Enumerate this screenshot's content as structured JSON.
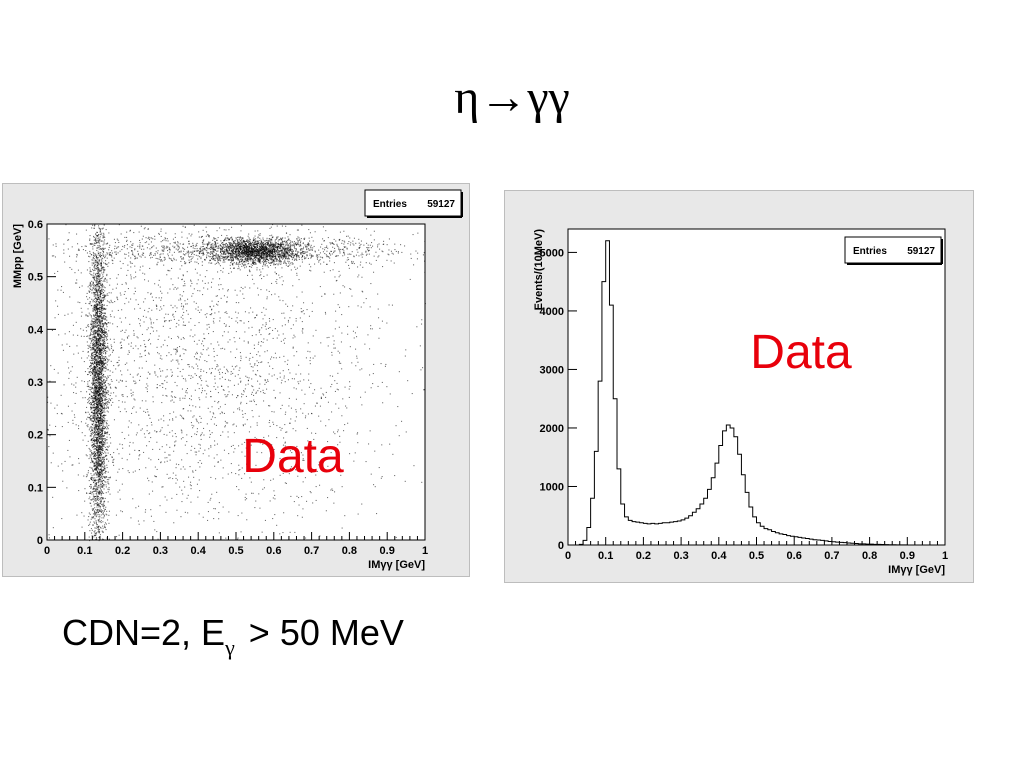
{
  "slide": {
    "title": "η→γγ",
    "caption_main": "CDN=2, E",
    "caption_sub": "γ",
    "caption_rest": " > 50 MeV",
    "text_color": "#000000",
    "annotation_color": "#e8000b"
  },
  "chart_data": [
    {
      "type": "scatter",
      "xlabel": "IMγγ [GeV]",
      "ylabel": "MMpp [GeV]",
      "xlim": [
        0,
        1
      ],
      "ylim": [
        0,
        0.6
      ],
      "xticks": [
        "0",
        "0.1",
        "0.2",
        "0.3",
        "0.4",
        "0.5",
        "0.6",
        "0.7",
        "0.8",
        "0.9",
        "1"
      ],
      "yticks": [
        "0",
        "0.1",
        "0.2",
        "0.3",
        "0.4",
        "0.5",
        "0.6"
      ],
      "stats_label": "Entries",
      "stats_value": "59127",
      "annotation": "Data",
      "grid": false,
      "clusters": [
        {
          "name": "",
          "x": 0.135,
          "y": 0.3,
          "sx": 0.012,
          "sy": 0.16,
          "weight": 0.4
        },
        {
          "name": "",
          "x": 0.55,
          "y": 0.55,
          "sx": 0.06,
          "sy": 0.012,
          "weight": 0.2
        },
        {
          "name": "",
          "x": 0.5,
          "y": 0.55,
          "sx": 0.25,
          "sy": 0.015,
          "weight": 0.12
        },
        {
          "name": "",
          "x": 0.4,
          "y": 0.32,
          "sx": 0.25,
          "sy": 0.17,
          "weight": 0.28
        }
      ]
    },
    {
      "type": "bar",
      "histogram": true,
      "xlabel": "IMγγ [GeV]",
      "ylabel": "Events/(10MeV)",
      "xlim": [
        0,
        1
      ],
      "ylim": [
        0,
        5400
      ],
      "xticks": [
        "0",
        "0.1",
        "0.2",
        "0.3",
        "0.4",
        "0.5",
        "0.6",
        "0.7",
        "0.8",
        "0.9",
        "1"
      ],
      "yticks": [
        "0",
        "1000",
        "2000",
        "3000",
        "4000",
        "5000"
      ],
      "stats_label": "Entries",
      "stats_value": "59127",
      "annotation": "Data",
      "bin_width": 0.01,
      "values": [
        0,
        0,
        0,
        10,
        80,
        300,
        800,
        1600,
        2800,
        4500,
        5200,
        4100,
        2500,
        1300,
        700,
        480,
        420,
        400,
        390,
        380,
        370,
        360,
        370,
        360,
        370,
        380,
        380,
        390,
        400,
        410,
        430,
        460,
        500,
        560,
        620,
        700,
        800,
        950,
        1150,
        1400,
        1700,
        1950,
        2050,
        2000,
        1850,
        1550,
        1200,
        900,
        650,
        480,
        380,
        320,
        280,
        260,
        230,
        210,
        190,
        180,
        160,
        150,
        140,
        130,
        120,
        110,
        100,
        90,
        85,
        80,
        70,
        60,
        55,
        50,
        45,
        40,
        35,
        30,
        25,
        20,
        20,
        15,
        15,
        10,
        10,
        8,
        6,
        5,
        4,
        3,
        2,
        2,
        1,
        0,
        0,
        0,
        0,
        0,
        0,
        0,
        0,
        0
      ]
    }
  ]
}
